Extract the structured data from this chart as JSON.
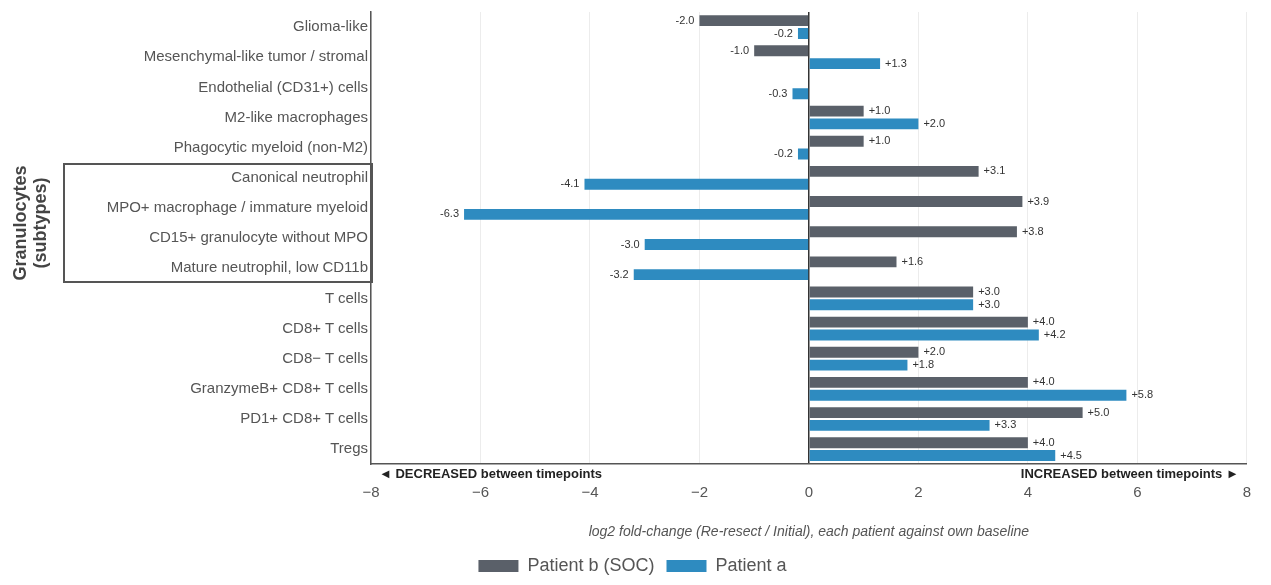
{
  "chart_data": {
    "type": "bar",
    "orientation": "horizontal",
    "xlabel": "log2 fold-change (Re-resect / Initial), each patient against own baseline",
    "categories": [
      "Glioma-like",
      "Mesenchymal-like tumor / stromal",
      "Endothelial (CD31+) cells",
      "M2-like macrophages",
      "Phagocytic myeloid (non-M2)",
      "Canonical neutrophil",
      "MPO+ macrophage / immature myeloid",
      "CD15+ granulocyte without MPO",
      "Mature neutrophil, low CD11b",
      "T cells",
      "CD8+ T cells",
      "CD8− T cells",
      "GranzymeB+ CD8+ T cells",
      "PD1+ CD8+ T cells",
      "Tregs"
    ],
    "series": [
      {
        "name": "Patient b (SOC)",
        "color": "#5a6069",
        "values": [
          -2.0,
          -1.0,
          null,
          1.0,
          1.0,
          3.1,
          3.9,
          3.8,
          1.6,
          3.0,
          4.0,
          2.0,
          4.0,
          5.0,
          4.0
        ],
        "value_labels": [
          "-2.0",
          "-1.0",
          null,
          "+1.0",
          "+1.0",
          "+3.1",
          "+3.9",
          "+3.8",
          "+1.6",
          "+3.0",
          "+4.0",
          "+2.0",
          "+4.0",
          "+5.0",
          "+4.0"
        ]
      },
      {
        "name": "Patient a",
        "color": "#2e8bc0",
        "values": [
          -0.2,
          1.3,
          -0.3,
          2.0,
          -0.2,
          -4.1,
          -6.3,
          -3.0,
          -3.2,
          3.0,
          4.2,
          1.8,
          5.8,
          3.3,
          4.5
        ],
        "value_labels": [
          "-0.2",
          "+1.3",
          "-0.3",
          "+2.0",
          "-0.2",
          "-4.1",
          "-6.3",
          "-3.0",
          "-3.2",
          "+3.0",
          "+4.2",
          "+1.8",
          "+5.8",
          "+3.3",
          "+4.5"
        ]
      }
    ],
    "xlim": [
      -8,
      8
    ],
    "xticks": [
      {
        "value": -8,
        "label": "−8"
      },
      {
        "value": -6,
        "label": "−6"
      },
      {
        "value": -4,
        "label": "−4"
      },
      {
        "value": -2,
        "label": "−2"
      },
      0,
      2,
      4,
      6,
      8
    ],
    "grid": "x",
    "legend": "bottom",
    "annotations": [
      "Granulocytes (subtypes)",
      "◄ DECREASED between timepoints",
      "INCREASED between timepoints ►"
    ]
  }
}
